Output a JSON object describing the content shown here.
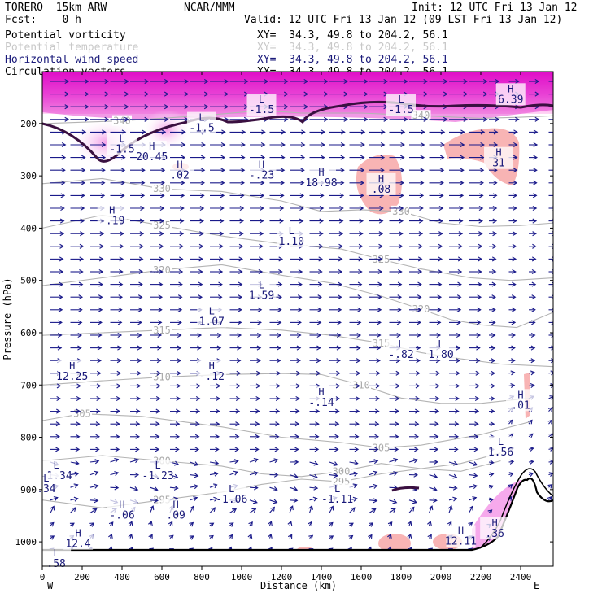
{
  "header": {
    "model": "TORERO  15km ARW",
    "center": "NCAR/MMM",
    "init": "Init: 12 UTC Fri 13 Jan 12",
    "fcst": "Fcst:    0 h",
    "valid": "Valid: 12 UTC Fri 13 Jan 12 (09 LST Fri 13 Jan 12)"
  },
  "fields": [
    {
      "name": "Potential vorticity",
      "xy": "XY=  34.3, 49.8 to 204.2, 56.1",
      "color": "#000000"
    },
    {
      "name": "Potential temperature",
      "xy": "XY=  34.3, 49.8 to 204.2, 56.1",
      "color": "#c8c8c8"
    },
    {
      "name": "Horizontal wind speed",
      "xy": "XY=  34.3, 49.8 to 204.2, 56.1",
      "color": "#1a1a7a"
    },
    {
      "name": "Circulation vectors",
      "xy": "XY=  34.3, 49.8 to 204.2, 56.1",
      "color": "#000000"
    }
  ],
  "chart_data": {
    "type": "cross-section",
    "xlabel": "Distance (km)",
    "ylabel": "Pressure (hPa)",
    "xlim": [
      0,
      2570
    ],
    "ylim": [
      1050,
      100
    ],
    "x_ticks": [
      0,
      200,
      400,
      600,
      800,
      1000,
      1200,
      1400,
      1600,
      1800,
      2000,
      2200,
      2400
    ],
    "y_ticks": [
      200,
      300,
      400,
      500,
      600,
      700,
      800,
      900,
      1000
    ],
    "west_label": "W",
    "east_label": "E",
    "theta_contours": [
      {
        "value": "295",
        "points": [
          [
            0,
            920
          ],
          [
            300,
            935
          ],
          [
            600,
            920
          ],
          [
            900,
            905
          ],
          [
            1100,
            890
          ],
          [
            1300,
            880
          ],
          [
            1500,
            885
          ],
          [
            1700,
            870
          ],
          [
            1900,
            860
          ],
          [
            2100,
            850
          ],
          [
            2300,
            830
          ]
        ]
      },
      {
        "value": "300",
        "points": [
          [
            0,
            845
          ],
          [
            300,
            835
          ],
          [
            600,
            845
          ],
          [
            900,
            855
          ],
          [
            1100,
            870
          ],
          [
            1300,
            875
          ],
          [
            1500,
            865
          ],
          [
            1700,
            850
          ],
          [
            1900,
            860
          ],
          [
            2100,
            865
          ],
          [
            2300,
            845
          ]
        ]
      },
      {
        "value": "305",
        "points": [
          [
            0,
            768
          ],
          [
            200,
            755
          ],
          [
            500,
            760
          ],
          [
            900,
            780
          ],
          [
            1200,
            800
          ],
          [
            1500,
            810
          ],
          [
            1700,
            820
          ],
          [
            1900,
            815
          ],
          [
            2200,
            795
          ],
          [
            2450,
            770
          ]
        ]
      },
      {
        "value": "310",
        "points": [
          [
            0,
            700
          ],
          [
            300,
            692
          ],
          [
            600,
            685
          ],
          [
            900,
            680
          ],
          [
            1200,
            678
          ],
          [
            1400,
            680
          ],
          [
            1600,
            700
          ],
          [
            1800,
            725
          ],
          [
            2000,
            735
          ],
          [
            2200,
            735
          ],
          [
            2450,
            725
          ]
        ]
      },
      {
        "value": "315",
        "points": [
          [
            0,
            605
          ],
          [
            300,
            600
          ],
          [
            600,
            595
          ],
          [
            900,
            590
          ],
          [
            1200,
            595
          ],
          [
            1450,
            605
          ],
          [
            1700,
            620
          ],
          [
            1900,
            638
          ],
          [
            2100,
            650
          ],
          [
            2300,
            660
          ],
          [
            2570,
            665
          ]
        ]
      },
      {
        "value": "320",
        "points": [
          [
            0,
            510
          ],
          [
            300,
            495
          ],
          [
            600,
            480
          ],
          [
            900,
            470
          ],
          [
            1200,
            490
          ],
          [
            1450,
            505
          ],
          [
            1700,
            530
          ],
          [
            1900,
            555
          ],
          [
            2050,
            575
          ],
          [
            2200,
            585
          ],
          [
            2380,
            590
          ],
          [
            2570,
            560
          ]
        ]
      },
      {
        "value": "325",
        "points": [
          [
            0,
            400
          ],
          [
            300,
            375
          ],
          [
            600,
            395
          ],
          [
            900,
            415
          ],
          [
            1200,
            430
          ],
          [
            1500,
            440
          ],
          [
            1700,
            460
          ],
          [
            1900,
            478
          ],
          [
            2150,
            495
          ],
          [
            2350,
            500
          ],
          [
            2570,
            495
          ]
        ]
      },
      {
        "value": "330",
        "points": [
          [
            0,
            315
          ],
          [
            300,
            305
          ],
          [
            600,
            325
          ],
          [
            900,
            330
          ],
          [
            1200,
            348
          ],
          [
            1400,
            368
          ],
          [
            1600,
            365
          ],
          [
            1800,
            368
          ],
          [
            2000,
            390
          ],
          [
            2200,
            397
          ],
          [
            2400,
            395
          ],
          [
            2570,
            390
          ]
        ]
      },
      {
        "value": "340",
        "points": [
          [
            0,
            200
          ],
          [
            400,
            195
          ],
          [
            800,
            185
          ],
          [
            1100,
            175
          ],
          [
            1300,
            180
          ],
          [
            1600,
            180
          ],
          [
            1900,
            185
          ],
          [
            2200,
            190
          ],
          [
            2400,
            188
          ],
          [
            2570,
            185
          ]
        ]
      }
    ],
    "pv_labels": [
      {
        "type": "H",
        "value": "6.39",
        "x": 2350,
        "y": 140
      },
      {
        "type": "L",
        "value": "-1.5",
        "x": 1100,
        "y": 160
      },
      {
        "type": "L",
        "value": "-1.5",
        "x": 1800,
        "y": 160
      },
      {
        "type": "L",
        "value": "-1.5",
        "x": 800,
        "y": 195
      },
      {
        "type": "L",
        "value": "-1.5",
        "x": 400,
        "y": 235
      },
      {
        "type": "H",
        "value": "20.45",
        "x": 550,
        "y": 250
      },
      {
        "type": "H",
        "value": "31",
        "x": 2290,
        "y": 262
      },
      {
        "type": "H",
        "value": ".02",
        "x": 690,
        "y": 285
      },
      {
        "type": "H",
        "value": "-.23",
        "x": 1100,
        "y": 285
      },
      {
        "type": "H",
        "value": "18.98",
        "x": 1400,
        "y": 300
      },
      {
        "type": "H",
        "value": ".08",
        "x": 1700,
        "y": 312
      },
      {
        "type": "H",
        "value": "-.19",
        "x": 350,
        "y": 372
      },
      {
        "type": "L",
        "value": "1.10",
        "x": 1250,
        "y": 412
      },
      {
        "type": "L",
        "value": "1.59",
        "x": 1100,
        "y": 515
      },
      {
        "type": "L",
        "value": "1.07",
        "x": 850,
        "y": 565
      },
      {
        "type": "L",
        "value": "-.82",
        "x": 1800,
        "y": 628
      },
      {
        "type": "L",
        "value": "1.80",
        "x": 2000,
        "y": 628
      },
      {
        "type": "H",
        "value": "12.25",
        "x": 150,
        "y": 670
      },
      {
        "type": "H",
        "value": "-.12",
        "x": 850,
        "y": 670
      },
      {
        "type": "H",
        "value": "-.14",
        "x": 1400,
        "y": 720
      },
      {
        "type": "H",
        "value": ".01",
        "x": 2400,
        "y": 725
      },
      {
        "type": "L",
        "value": "1.56",
        "x": 2300,
        "y": 815
      },
      {
        "type": "L",
        "value": "-1.34",
        "x": 70,
        "y": 860
      },
      {
        "type": "L",
        "value": "-1.23",
        "x": 580,
        "y": 860
      },
      {
        "type": "L",
        "value": ".34",
        "x": 20,
        "y": 885
      },
      {
        "type": "L",
        "value": "-1.06",
        "x": 950,
        "y": 905
      },
      {
        "type": "L",
        "value": "-1.11",
        "x": 1480,
        "y": 905
      },
      {
        "type": "H",
        "value": "-.06",
        "x": 400,
        "y": 935
      },
      {
        "type": "H",
        "value": ".09",
        "x": 670,
        "y": 935
      },
      {
        "type": "H",
        "value": "12.4",
        "x": 180,
        "y": 990
      },
      {
        "type": "H",
        "value": "12.11",
        "x": 2100,
        "y": 985
      },
      {
        "type": "H",
        "value": ".36",
        "x": 2270,
        "y": 970
      },
      {
        "type": "L",
        "value": ".58",
        "x": 70,
        "y": 1028
      }
    ]
  }
}
